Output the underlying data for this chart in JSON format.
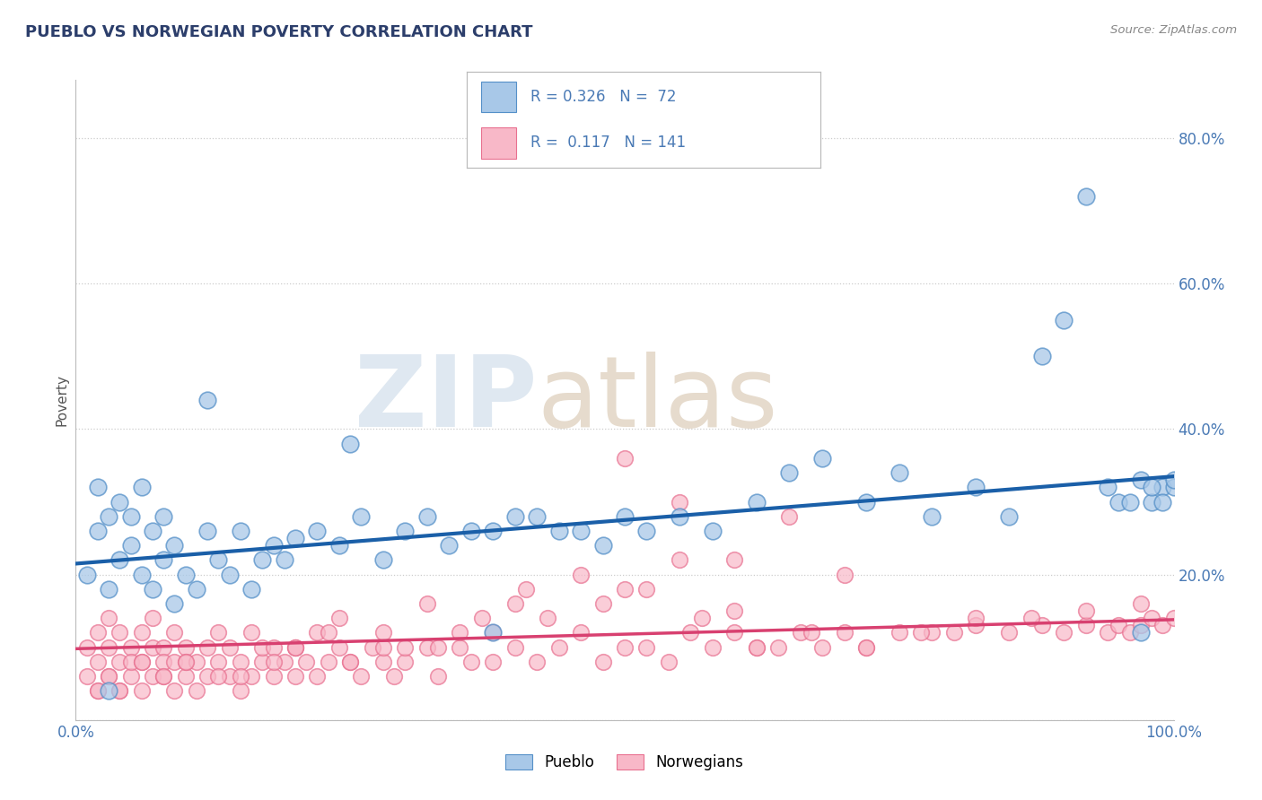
{
  "title": "PUEBLO VS NORWEGIAN POVERTY CORRELATION CHART",
  "source_text": "Source: ZipAtlas.com",
  "ylabel": "Poverty",
  "xlim": [
    0,
    1
  ],
  "ylim": [
    0.0,
    0.88
  ],
  "yticks": [
    0.0,
    0.2,
    0.4,
    0.6,
    0.8
  ],
  "ytick_labels": [
    "",
    "20.0%",
    "40.0%",
    "60.0%",
    "80.0%"
  ],
  "xticks": [
    0.0,
    1.0
  ],
  "xtick_labels": [
    "0.0%",
    "100.0%"
  ],
  "pueblo_R": 0.326,
  "pueblo_N": 72,
  "norwegian_R": 0.117,
  "norwegian_N": 141,
  "pueblo_line_start_x": 0.0,
  "pueblo_line_start_y": 0.215,
  "pueblo_line_end_x": 1.0,
  "pueblo_line_end_y": 0.335,
  "norwegian_line_start_x": 0.0,
  "norwegian_line_start_y": 0.098,
  "norwegian_line_end_x": 1.0,
  "norwegian_line_end_y": 0.138,
  "pueblo_color": "#a8c8e8",
  "pueblo_edge_color": "#5590c8",
  "norwegian_color": "#f8b8c8",
  "norwegian_edge_color": "#e87090",
  "trend_blue": "#1a5fa8",
  "trend_pink": "#d84070",
  "background_color": "#ffffff",
  "grid_color": "#cccccc",
  "title_color": "#2c3e6b",
  "watermark_zip_color": "#b8cce0",
  "watermark_atlas_color": "#c8b090",
  "legend_box_color": "#e8eef5",
  "legend_border_color": "#bbbbbb",
  "tick_label_color": "#4a7ab5",
  "pueblo_x": [
    0.01,
    0.02,
    0.02,
    0.03,
    0.03,
    0.04,
    0.04,
    0.05,
    0.05,
    0.06,
    0.06,
    0.07,
    0.07,
    0.08,
    0.08,
    0.09,
    0.09,
    0.1,
    0.11,
    0.12,
    0.12,
    0.13,
    0.14,
    0.15,
    0.16,
    0.17,
    0.18,
    0.19,
    0.2,
    0.22,
    0.24,
    0.26,
    0.28,
    0.3,
    0.32,
    0.34,
    0.36,
    0.38,
    0.4,
    0.42,
    0.44,
    0.46,
    0.48,
    0.5,
    0.52,
    0.55,
    0.58,
    0.62,
    0.65,
    0.68,
    0.72,
    0.75,
    0.78,
    0.82,
    0.85,
    0.88,
    0.9,
    0.92,
    0.94,
    0.95,
    0.96,
    0.97,
    0.98,
    0.99,
    1.0,
    1.0,
    0.99,
    0.98,
    0.97,
    0.03,
    0.25,
    0.38
  ],
  "pueblo_y": [
    0.2,
    0.26,
    0.32,
    0.28,
    0.18,
    0.22,
    0.3,
    0.24,
    0.28,
    0.2,
    0.32,
    0.18,
    0.26,
    0.22,
    0.28,
    0.16,
    0.24,
    0.2,
    0.18,
    0.26,
    0.44,
    0.22,
    0.2,
    0.26,
    0.18,
    0.22,
    0.24,
    0.22,
    0.25,
    0.26,
    0.24,
    0.28,
    0.22,
    0.26,
    0.28,
    0.24,
    0.26,
    0.26,
    0.28,
    0.28,
    0.26,
    0.26,
    0.24,
    0.28,
    0.26,
    0.28,
    0.26,
    0.3,
    0.34,
    0.36,
    0.3,
    0.34,
    0.28,
    0.32,
    0.28,
    0.5,
    0.55,
    0.72,
    0.32,
    0.3,
    0.3,
    0.33,
    0.3,
    0.32,
    0.32,
    0.33,
    0.3,
    0.32,
    0.12,
    0.04,
    0.38,
    0.12
  ],
  "norwegian_x": [
    0.01,
    0.01,
    0.02,
    0.02,
    0.02,
    0.03,
    0.03,
    0.03,
    0.04,
    0.04,
    0.04,
    0.05,
    0.05,
    0.05,
    0.06,
    0.06,
    0.06,
    0.07,
    0.07,
    0.07,
    0.08,
    0.08,
    0.08,
    0.09,
    0.09,
    0.09,
    0.1,
    0.1,
    0.1,
    0.11,
    0.11,
    0.12,
    0.12,
    0.13,
    0.13,
    0.14,
    0.14,
    0.15,
    0.15,
    0.16,
    0.16,
    0.17,
    0.17,
    0.18,
    0.18,
    0.19,
    0.2,
    0.2,
    0.21,
    0.22,
    0.22,
    0.23,
    0.24,
    0.25,
    0.26,
    0.27,
    0.28,
    0.29,
    0.3,
    0.32,
    0.33,
    0.35,
    0.36,
    0.38,
    0.4,
    0.42,
    0.44,
    0.46,
    0.48,
    0.5,
    0.52,
    0.54,
    0.56,
    0.58,
    0.6,
    0.62,
    0.64,
    0.66,
    0.68,
    0.7,
    0.72,
    0.75,
    0.78,
    0.8,
    0.82,
    0.85,
    0.88,
    0.9,
    0.92,
    0.94,
    0.95,
    0.96,
    0.97,
    0.98,
    0.99,
    1.0,
    0.5,
    0.55,
    0.6,
    0.4,
    0.35,
    0.3,
    0.25,
    0.2,
    0.15,
    0.1,
    0.08,
    0.06,
    0.04,
    0.03,
    0.02,
    0.48,
    0.43,
    0.38,
    0.33,
    0.28,
    0.23,
    0.18,
    0.13,
    0.52,
    0.57,
    0.62,
    0.67,
    0.72,
    0.77,
    0.82,
    0.87,
    0.92,
    0.97,
    0.5,
    0.55,
    0.6,
    0.65,
    0.7,
    0.46,
    0.41,
    0.37,
    0.32,
    0.28,
    0.24,
    0.2
  ],
  "norwegian_y": [
    0.1,
    0.06,
    0.08,
    0.12,
    0.04,
    0.06,
    0.1,
    0.14,
    0.08,
    0.12,
    0.04,
    0.06,
    0.1,
    0.08,
    0.04,
    0.08,
    0.12,
    0.06,
    0.1,
    0.14,
    0.06,
    0.1,
    0.08,
    0.04,
    0.08,
    0.12,
    0.06,
    0.1,
    0.08,
    0.04,
    0.08,
    0.06,
    0.1,
    0.08,
    0.12,
    0.06,
    0.1,
    0.04,
    0.08,
    0.06,
    0.12,
    0.08,
    0.1,
    0.06,
    0.1,
    0.08,
    0.06,
    0.1,
    0.08,
    0.06,
    0.12,
    0.08,
    0.1,
    0.08,
    0.06,
    0.1,
    0.08,
    0.06,
    0.08,
    0.1,
    0.06,
    0.1,
    0.08,
    0.08,
    0.1,
    0.08,
    0.1,
    0.12,
    0.08,
    0.1,
    0.1,
    0.08,
    0.12,
    0.1,
    0.12,
    0.1,
    0.1,
    0.12,
    0.1,
    0.12,
    0.1,
    0.12,
    0.12,
    0.12,
    0.13,
    0.12,
    0.13,
    0.12,
    0.13,
    0.12,
    0.13,
    0.12,
    0.13,
    0.14,
    0.13,
    0.14,
    0.18,
    0.22,
    0.15,
    0.16,
    0.12,
    0.1,
    0.08,
    0.1,
    0.06,
    0.08,
    0.06,
    0.08,
    0.04,
    0.06,
    0.04,
    0.16,
    0.14,
    0.12,
    0.1,
    0.1,
    0.12,
    0.08,
    0.06,
    0.18,
    0.14,
    0.1,
    0.12,
    0.1,
    0.12,
    0.14,
    0.14,
    0.15,
    0.16,
    0.36,
    0.3,
    0.22,
    0.28,
    0.2,
    0.2,
    0.18,
    0.14,
    0.16,
    0.12,
    0.14,
    0.1
  ]
}
